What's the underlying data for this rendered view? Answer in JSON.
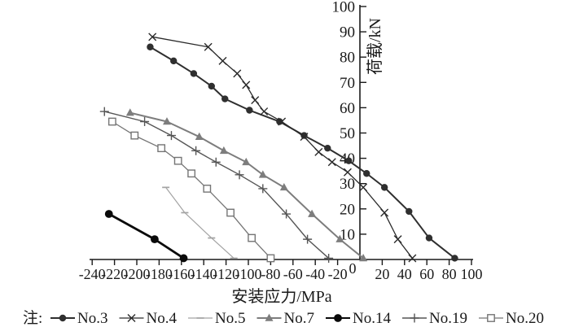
{
  "chart_data": {
    "type": "line",
    "title": "",
    "xlabel": "安装应力/MPa",
    "ylabel": "荷载/kN",
    "xlim": [
      -250,
      102
    ],
    "ylim": [
      0,
      100
    ],
    "xticks": [
      -240,
      -220,
      -200,
      -180,
      -160,
      -140,
      -120,
      -100,
      -80,
      -60,
      -40,
      -20,
      0,
      20,
      40,
      60,
      80,
      100
    ],
    "yticks": [
      0,
      10,
      20,
      30,
      40,
      50,
      60,
      70,
      80,
      90,
      100
    ],
    "origin_label": "0",
    "grid": false,
    "legend_prefix": "注:",
    "legend_position": "bottom",
    "axis_color": "#1a1a1a",
    "series": [
      {
        "name": "No.3",
        "marker": "filled-circle",
        "color": "#2f2f2f",
        "line_width": 2.0,
        "points": [
          [
            -188,
            84
          ],
          [
            -167,
            78.5
          ],
          [
            -149,
            73.5
          ],
          [
            -133,
            68.5
          ],
          [
            -121,
            63.5
          ],
          [
            -99,
            59
          ],
          [
            -72,
            54.5
          ],
          [
            -50,
            49
          ],
          [
            -29,
            44
          ],
          [
            -10,
            39
          ],
          [
            6,
            34
          ],
          [
            22,
            28.5
          ],
          [
            44,
            19
          ],
          [
            62,
            8.5
          ],
          [
            85,
            0.5
          ]
        ]
      },
      {
        "name": "No.4",
        "marker": "x",
        "color": "#2a2a2a",
        "line_width": 1.3,
        "points": [
          [
            -186,
            88
          ],
          [
            -136,
            84
          ],
          [
            -123,
            78.5
          ],
          [
            -110,
            73.5
          ],
          [
            -102,
            69
          ],
          [
            -94,
            63
          ],
          [
            -86,
            58.5
          ],
          [
            -70,
            54.5
          ],
          [
            -50,
            48.5
          ],
          [
            -37,
            42.5
          ],
          [
            -25,
            38.5
          ],
          [
            -11,
            34.5
          ],
          [
            3,
            28.5
          ],
          [
            22,
            18.5
          ],
          [
            34,
            8
          ],
          [
            47,
            0.5
          ]
        ]
      },
      {
        "name": "No.5",
        "marker": "dash",
        "color": "#a3a3a3",
        "line_width": 1.2,
        "points": [
          [
            -174,
            28.5
          ],
          [
            -157,
            18.5
          ],
          [
            -133,
            8.5
          ],
          [
            -113,
            0.5
          ]
        ]
      },
      {
        "name": "No.7",
        "marker": "filled-triangle",
        "color": "#7d7d7d",
        "line_width": 2.0,
        "points": [
          [
            -206,
            58
          ],
          [
            -173,
            54.5
          ],
          [
            -144,
            48.5
          ],
          [
            -122,
            43
          ],
          [
            -102,
            38.5
          ],
          [
            -87,
            33.5
          ],
          [
            -68,
            28.5
          ],
          [
            -43,
            18
          ],
          [
            -18,
            8
          ],
          [
            3,
            0.5
          ]
        ]
      },
      {
        "name": "No.14",
        "marker": "filled-circle-large",
        "color": "#0a0a0a",
        "line_width": 2.8,
        "points": [
          [
            -225,
            18
          ],
          [
            -184,
            8
          ],
          [
            -158,
            0.5
          ]
        ]
      },
      {
        "name": "No.19",
        "marker": "plus",
        "color": "#555555",
        "line_width": 1.4,
        "points": [
          [
            -229,
            58.5
          ],
          [
            -193,
            54.5
          ],
          [
            -169,
            49
          ],
          [
            -147,
            43
          ],
          [
            -129,
            38.5
          ],
          [
            -108,
            33.5
          ],
          [
            -87,
            28
          ],
          [
            -66,
            18
          ],
          [
            -47,
            8
          ],
          [
            -28,
            0.5
          ]
        ]
      },
      {
        "name": "No.20",
        "marker": "open-square",
        "color": "#757575",
        "line_width": 1.3,
        "points": [
          [
            -222,
            54.5
          ],
          [
            -202,
            49
          ],
          [
            -178,
            44
          ],
          [
            -163,
            39
          ],
          [
            -151,
            34
          ],
          [
            -137,
            28
          ],
          [
            -116,
            18.5
          ],
          [
            -97,
            8.5
          ],
          [
            -80,
            0.5
          ]
        ]
      }
    ]
  }
}
